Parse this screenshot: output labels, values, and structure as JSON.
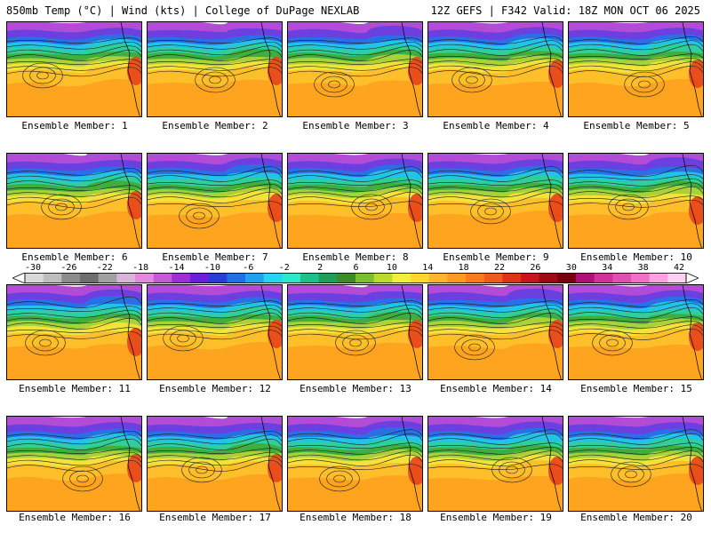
{
  "header": {
    "left_title": "850mb Temp (°C) | Wind (kts) | College of DuPage NEXLAB",
    "right_title": "12Z GEFS | F342 Valid: 18Z MON OCT 06 2025"
  },
  "colorbar": {
    "labels": [
      "-30",
      "-26",
      "-22",
      "-18",
      "-14",
      "-10",
      "-6",
      "-2",
      "2",
      "6",
      "10",
      "14",
      "18",
      "22",
      "26",
      "30",
      "34",
      "38",
      "42"
    ],
    "colors": [
      "#d9d9d9",
      "#bdbdbd",
      "#8c8c8c",
      "#6e6e6e",
      "#a0a0a0",
      "#d7b5d8",
      "#e08be0",
      "#c45ad6",
      "#9b30d9",
      "#6a1fe0",
      "#2b3bd9",
      "#1f6fe6",
      "#1fa3f0",
      "#25d4f2",
      "#2ee6c8",
      "#1cc18a",
      "#1fa05a",
      "#3c8a2a",
      "#7bbf2e",
      "#b9dc2a",
      "#f0f03a",
      "#ffd92a",
      "#ffb52a",
      "#ff9a1f",
      "#ff7a1a",
      "#f05a1a",
      "#e0321a",
      "#c8141a",
      "#a00a14",
      "#7a0010",
      "#b0107a",
      "#d0329a",
      "#e050b0",
      "#f070c8",
      "#ffa0e0",
      "#ffd0f0"
    ]
  },
  "members": [
    {
      "label": "Ensemble Member: 1"
    },
    {
      "label": "Ensemble Member: 2"
    },
    {
      "label": "Ensemble Member: 3"
    },
    {
      "label": "Ensemble Member: 4"
    },
    {
      "label": "Ensemble Member: 5"
    },
    {
      "label": "Ensemble Member: 6"
    },
    {
      "label": "Ensemble Member: 7"
    },
    {
      "label": "Ensemble Member: 8"
    },
    {
      "label": "Ensemble Member: 9"
    },
    {
      "label": "Ensemble Member: 10"
    },
    {
      "label": "Ensemble Member: 11"
    },
    {
      "label": "Ensemble Member: 12"
    },
    {
      "label": "Ensemble Member: 13"
    },
    {
      "label": "Ensemble Member: 14"
    },
    {
      "label": "Ensemble Member: 15"
    },
    {
      "label": "Ensemble Member: 16"
    },
    {
      "label": "Ensemble Member: 17"
    },
    {
      "label": "Ensemble Member: 18"
    },
    {
      "label": "Ensemble Member: 19"
    },
    {
      "label": "Ensemble Member: 20"
    }
  ]
}
